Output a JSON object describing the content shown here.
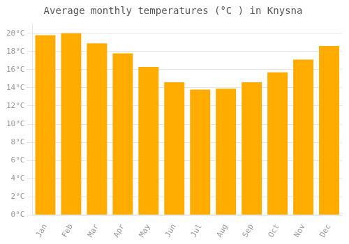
{
  "chart_data": {
    "type": "bar",
    "title": "Average monthly temperatures (°C ) in Knysna",
    "categories": [
      "Jan",
      "Feb",
      "Mar",
      "Apr",
      "May",
      "Jun",
      "Jul",
      "Aug",
      "Sep",
      "Oct",
      "Nov",
      "Dec"
    ],
    "values": [
      19.8,
      20.0,
      18.9,
      17.8,
      16.3,
      14.6,
      13.8,
      13.9,
      14.6,
      15.7,
      17.1,
      18.6
    ],
    "color": "#FFAB00",
    "ylim": [
      0,
      21
    ],
    "yticks": [
      {
        "value": 0,
        "label": "0°C"
      },
      {
        "value": 2,
        "label": "2°C"
      },
      {
        "value": 4,
        "label": "4°C"
      },
      {
        "value": 6,
        "label": "6°C"
      },
      {
        "value": 8,
        "label": "8°C"
      },
      {
        "value": 10,
        "label": "10°C"
      },
      {
        "value": 12,
        "label": "12°C"
      },
      {
        "value": 14,
        "label": "14°C"
      },
      {
        "value": 16,
        "label": "16°C"
      },
      {
        "value": 18,
        "label": "18°C"
      },
      {
        "value": 20,
        "label": "20°C"
      }
    ],
    "grid": true
  }
}
